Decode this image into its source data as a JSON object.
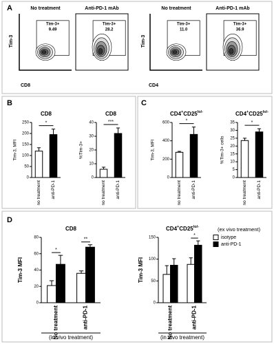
{
  "panel_labels": [
    "A",
    "B",
    "C",
    "D"
  ],
  "flow_groups": [
    {
      "ylabel": "Tim-3",
      "xlabel": "CD8",
      "plots": [
        {
          "title": "No treatment",
          "gate": "Tim-3+",
          "value": 9.49
        },
        {
          "title": "Anti-PD-1 mAb",
          "gate": "Tim-3+",
          "value": 28.2
        }
      ]
    },
    {
      "ylabel": "Tim-3",
      "xlabel": "CD4",
      "plots": [
        {
          "title": "No treatment",
          "gate": "Tim-3+",
          "value": 11.0,
          "value_label": "11.0"
        },
        {
          "title": "Anti-PD-1 mAb",
          "gate": "Tim-3+",
          "value": 36.9
        }
      ]
    }
  ],
  "chart_data": [
    {
      "type": "bar",
      "title": "CD8",
      "ylabel": "Tim-3, MFI",
      "categories": [
        "no treatment",
        "anti-PD-1"
      ],
      "values": [
        120,
        195
      ],
      "errors": [
        15,
        25
      ],
      "colors": [
        "#ffffff",
        "#000000"
      ],
      "ylim": [
        0,
        250
      ],
      "yticks": [
        0,
        50,
        100,
        150,
        200,
        250
      ],
      "annotations": [
        "*"
      ]
    },
    {
      "type": "bar",
      "title": "CD8",
      "ylabel": "%Tim-3+",
      "categories": [
        "no treatment",
        "anti-PD-1"
      ],
      "values": [
        6,
        32
      ],
      "errors": [
        1.5,
        4
      ],
      "colors": [
        "#ffffff",
        "#000000"
      ],
      "ylim": [
        0,
        40
      ],
      "yticks": [
        0,
        10,
        20,
        30,
        40
      ],
      "annotations": [
        "***"
      ]
    },
    {
      "type": "bar",
      "title": [
        {
          "text": "CD4"
        },
        {
          "text": "+",
          "sup": true
        },
        {
          "text": "CD25"
        },
        {
          "text": "lo/-",
          "sup": true
        }
      ],
      "ylabel": "Tim-3, MFI",
      "categories": [
        "no treatment",
        "anti-PD-1"
      ],
      "values": [
        275,
        470
      ],
      "errors": [
        10,
        80
      ],
      "colors": [
        "#ffffff",
        "#000000"
      ],
      "ylim": [
        0,
        600
      ],
      "yticks": [
        0,
        200,
        400,
        600
      ],
      "annotations": [
        "*"
      ]
    },
    {
      "type": "bar",
      "title": [
        {
          "text": "CD4"
        },
        {
          "text": "+",
          "sup": true
        },
        {
          "text": "CD25"
        },
        {
          "text": "lo/-",
          "sup": true
        }
      ],
      "ylabel": "%Tim-3+ cells",
      "categories": [
        "no treatment",
        "anti-PD-1"
      ],
      "values": [
        23.5,
        29
      ],
      "errors": [
        1.5,
        2
      ],
      "colors": [
        "#ffffff",
        "#000000"
      ],
      "ylim": [
        0,
        35
      ],
      "yticks": [
        0,
        5,
        10,
        15,
        20,
        25,
        30,
        35
      ],
      "annotations": [
        "*"
      ]
    },
    {
      "type": "grouped_bar",
      "title": "CD8",
      "ylabel": "Tim-3 MFI",
      "xlabel": "(in vivo treatment)",
      "categories": [
        "No treatment",
        "anti-PD-1"
      ],
      "series": [
        {
          "name": "isotype",
          "color": "#ffffff",
          "values": [
            21,
            36
          ],
          "errors": [
            6,
            3
          ]
        },
        {
          "name": "anti-PD-1",
          "color": "#000000",
          "values": [
            47,
            68
          ],
          "errors": [
            11,
            3
          ]
        }
      ],
      "ylim": [
        0,
        80
      ],
      "yticks": [
        0,
        20,
        40,
        60,
        80
      ],
      "annotations": [
        "*",
        "**"
      ]
    },
    {
      "type": "grouped_bar",
      "title": [
        {
          "text": "CD4"
        },
        {
          "text": "+",
          "sup": true
        },
        {
          "text": "CD25"
        },
        {
          "text": "lo/-",
          "sup": true
        }
      ],
      "ylabel": "Tim-3 MFI",
      "xlabel": "(in vivo treatment)",
      "legend_title": "(ex vivo treatment)",
      "categories": [
        "No treatment",
        "anti-PD-1"
      ],
      "series": [
        {
          "name": "isotype",
          "color": "#ffffff",
          "values": [
            65,
            88
          ],
          "errors": [
            20,
            15
          ]
        },
        {
          "name": "anti-PD-1",
          "color": "#000000",
          "values": [
            86,
            132
          ],
          "errors": [
            15,
            10
          ]
        }
      ],
      "ylim": [
        0,
        150
      ],
      "yticks": [
        0,
        50,
        100,
        150
      ],
      "annotations": [
        null,
        "*"
      ]
    }
  ]
}
